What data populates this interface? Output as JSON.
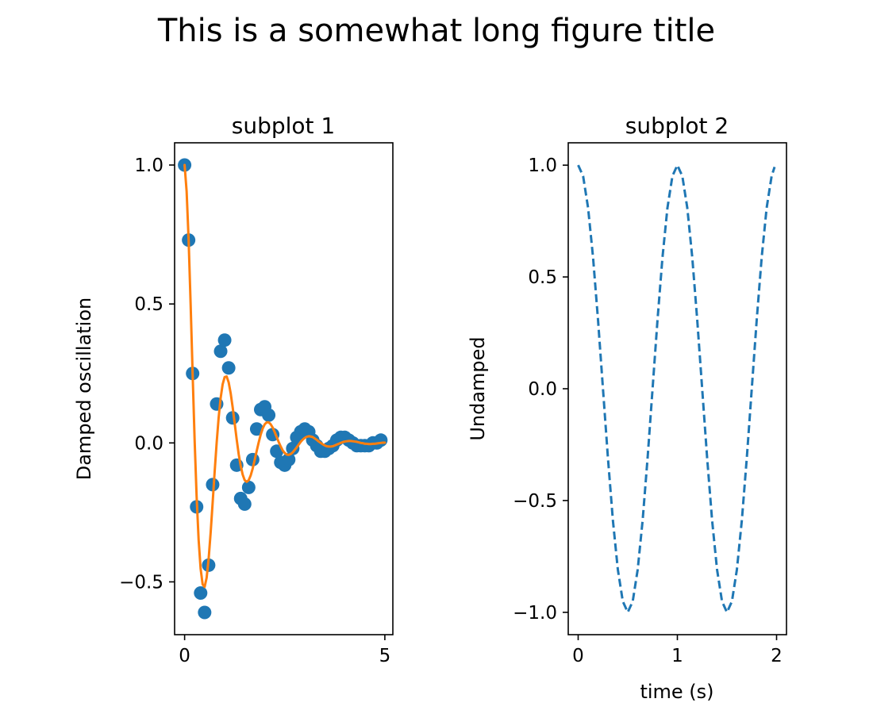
{
  "figure": {
    "title": "This is a somewhat long figure title"
  },
  "chart_data": [
    {
      "type": "line",
      "title": "subplot 1",
      "xlabel": "",
      "ylabel": "Damped oscillation",
      "xlim": [
        -0.25,
        5.2
      ],
      "ylim": [
        -0.69,
        1.08
      ],
      "x_ticks": [
        0,
        5
      ],
      "x_tick_labels": [
        "0",
        "5"
      ],
      "y_ticks": [
        -0.5,
        0.0,
        0.5,
        1.0
      ],
      "y_tick_labels": [
        "−0.5",
        "0.0",
        "0.5",
        "1.0"
      ],
      "grid": false,
      "legend": "none",
      "series": [
        {
          "kind": "scatter",
          "color": "#1f77b4",
          "x": [
            0.0,
            0.1,
            0.2,
            0.3,
            0.4,
            0.5,
            0.6,
            0.7,
            0.8,
            0.9,
            1.0,
            1.1,
            1.2,
            1.3,
            1.4,
            1.5,
            1.6,
            1.7,
            1.8,
            1.9,
            2.0,
            2.1,
            2.2,
            2.3,
            2.4,
            2.5,
            2.6,
            2.7,
            2.8,
            2.9,
            3.0,
            3.1,
            3.2,
            3.3,
            3.4,
            3.5,
            3.6,
            3.7,
            3.8,
            3.9,
            4.0,
            4.1,
            4.2,
            4.3,
            4.4,
            4.5,
            4.6,
            4.7,
            4.8,
            4.9
          ],
          "y": [
            1.0,
            0.73,
            0.25,
            -0.23,
            -0.54,
            -0.61,
            -0.44,
            -0.15,
            0.14,
            0.33,
            0.37,
            0.27,
            0.09,
            -0.08,
            -0.2,
            -0.22,
            -0.16,
            -0.06,
            0.05,
            0.12,
            0.13,
            0.1,
            0.03,
            -0.03,
            -0.07,
            -0.08,
            -0.06,
            -0.02,
            0.02,
            0.04,
            0.05,
            0.04,
            0.01,
            -0.01,
            -0.03,
            -0.03,
            -0.02,
            -0.01,
            0.01,
            0.02,
            0.02,
            0.01,
            0.0,
            -0.01,
            -0.01,
            -0.01,
            -0.01,
            0.0,
            0.0,
            0.01
          ]
        },
        {
          "kind": "line",
          "color": "#ff7f0e",
          "x": [
            0.0,
            0.05,
            0.1,
            0.15,
            0.2,
            0.25,
            0.3,
            0.35,
            0.4,
            0.45,
            0.5,
            0.55,
            0.6,
            0.65,
            0.7,
            0.75,
            0.8,
            0.85,
            0.9,
            0.95,
            1.0,
            1.05,
            1.1,
            1.15,
            1.2,
            1.25,
            1.3,
            1.35,
            1.4,
            1.45,
            1.5,
            1.55,
            1.6,
            1.65,
            1.7,
            1.75,
            1.8,
            1.85,
            1.9,
            1.95,
            2.0,
            2.05,
            2.1,
            2.15,
            2.2,
            2.25,
            2.3,
            2.35,
            2.4,
            2.45,
            2.5,
            2.55,
            2.6,
            2.65,
            2.7,
            2.75,
            2.8,
            2.85,
            2.9,
            2.95,
            3.0,
            3.05,
            3.1,
            3.15,
            3.2,
            3.25,
            3.3,
            3.35,
            3.4,
            3.45,
            3.5,
            3.55,
            3.6,
            3.65,
            3.7,
            3.75,
            3.8,
            3.85,
            3.9,
            3.95,
            4.0,
            4.05,
            4.1,
            4.15,
            4.2,
            4.25,
            4.3,
            4.35,
            4.4,
            4.45,
            4.5,
            4.55,
            4.6,
            4.65,
            4.7,
            4.75,
            4.8,
            4.85,
            4.9,
            4.95,
            5.0
          ],
          "y": [
            1.0,
            0.906,
            0.731,
            0.501,
            0.25,
            0.01,
            -0.193,
            -0.349,
            -0.453,
            -0.509,
            -0.518,
            -0.485,
            -0.417,
            -0.323,
            -0.215,
            -0.104,
            0.0,
            0.091,
            0.162,
            0.211,
            0.237,
            0.239,
            0.218,
            0.179,
            0.128,
            0.071,
            0.013,
            -0.04,
            -0.082,
            -0.114,
            -0.134,
            -0.14,
            -0.134,
            -0.117,
            -0.092,
            -0.061,
            -0.029,
            0.002,
            0.03,
            0.052,
            0.067,
            0.074,
            0.074,
            0.067,
            0.055,
            0.039,
            0.021,
            0.003,
            -0.013,
            -0.027,
            -0.036,
            -0.042,
            -0.043,
            -0.04,
            -0.034,
            -0.025,
            -0.016,
            -0.006,
            0.004,
            0.012,
            0.018,
            0.022,
            0.024,
            0.023,
            0.021,
            0.016,
            0.011,
            0.005,
            0.0,
            -0.005,
            -0.009,
            -0.012,
            -0.013,
            -0.013,
            -0.012,
            -0.009,
            -0.006,
            -0.003,
            0.0,
            0.003,
            0.005,
            0.006,
            0.007,
            0.007,
            0.006,
            0.005,
            0.004,
            0.002,
            0.0,
            -0.001,
            -0.003,
            -0.003,
            -0.004,
            -0.004,
            -0.003,
            -0.003,
            -0.002,
            -0.001,
            0.0,
            0.001,
            0.001
          ]
        }
      ]
    },
    {
      "type": "line",
      "title": "subplot 2",
      "xlabel": "time (s)",
      "ylabel": "Undamped",
      "xlim": [
        -0.1,
        2.1
      ],
      "ylim": [
        -1.1,
        1.1
      ],
      "x_ticks": [
        0,
        1,
        2
      ],
      "x_tick_labels": [
        "0",
        "1",
        "2"
      ],
      "y_ticks": [
        -1.0,
        -0.5,
        0.0,
        0.5,
        1.0
      ],
      "y_tick_labels": [
        "−1.0",
        "−0.5",
        "0.0",
        "0.5",
        "1.0"
      ],
      "grid": false,
      "legend": "none",
      "series": [
        {
          "kind": "line",
          "style": "dashed",
          "color": "#1f77b4",
          "x": [
            0.0,
            0.05,
            0.1,
            0.15,
            0.2,
            0.25,
            0.3,
            0.35,
            0.4,
            0.45,
            0.5,
            0.55,
            0.6,
            0.65,
            0.7,
            0.75,
            0.8,
            0.85,
            0.9,
            0.95,
            1.0,
            1.05,
            1.1,
            1.15,
            1.2,
            1.25,
            1.3,
            1.35,
            1.4,
            1.45,
            1.5,
            1.55,
            1.6,
            1.65,
            1.7,
            1.75,
            1.8,
            1.85,
            1.9,
            1.95,
            1.98
          ],
          "y": [
            1.0,
            0.951,
            0.809,
            0.588,
            0.309,
            0.0,
            -0.309,
            -0.588,
            -0.809,
            -0.951,
            -1.0,
            -0.951,
            -0.809,
            -0.588,
            -0.309,
            0.0,
            0.309,
            0.588,
            0.809,
            0.951,
            1.0,
            0.951,
            0.809,
            0.588,
            0.309,
            0.0,
            -0.309,
            -0.588,
            -0.809,
            -0.951,
            -1.0,
            -0.951,
            -0.809,
            -0.588,
            -0.309,
            0.0,
            0.309,
            0.588,
            0.809,
            0.951,
            0.992
          ]
        }
      ]
    }
  ]
}
